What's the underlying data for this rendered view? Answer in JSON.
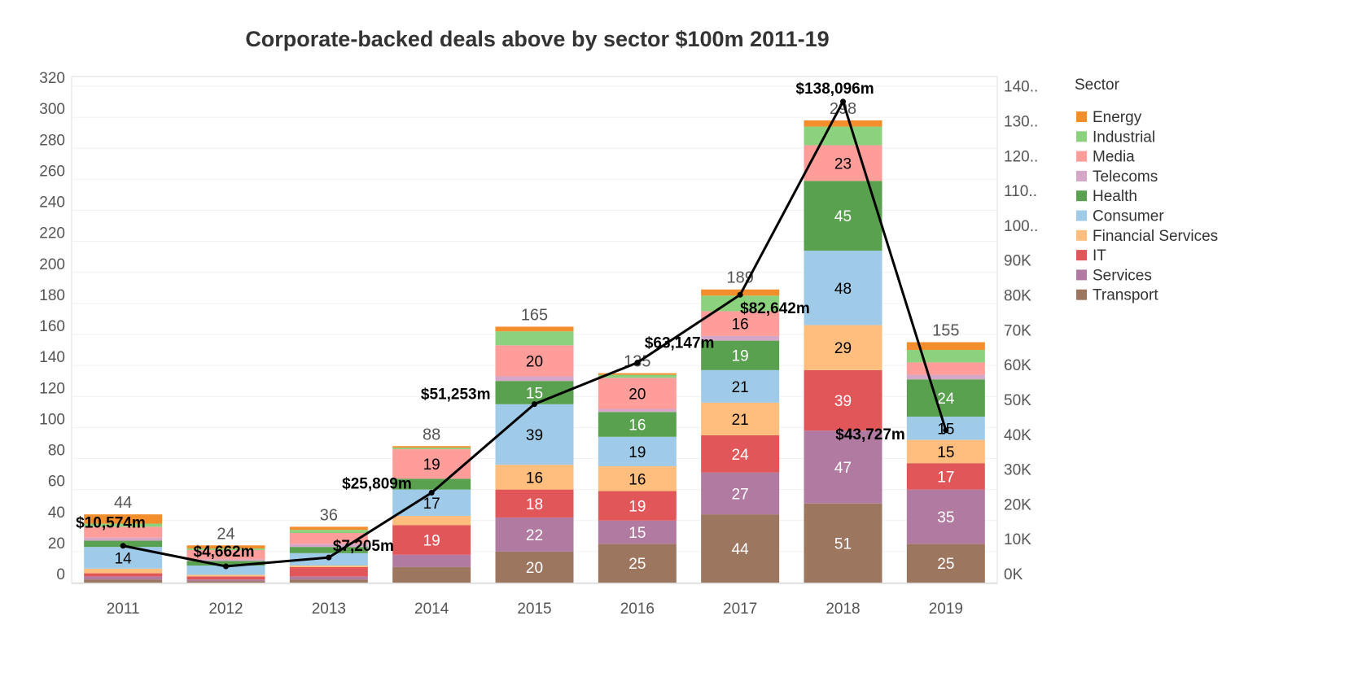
{
  "chart_data": {
    "type": "bar",
    "title": "Corporate-backed deals above by sector $100m 2011-19",
    "categories": [
      "2011",
      "2012",
      "2013",
      "2014",
      "2015",
      "2016",
      "2017",
      "2018",
      "2019"
    ],
    "ylim": [
      0,
      320
    ],
    "yticks": [
      "0",
      "20",
      "40",
      "60",
      "80",
      "100",
      "120",
      "140",
      "160",
      "180",
      "200",
      "220",
      "240",
      "260",
      "280",
      "300",
      "320"
    ],
    "y2lim": [
      0,
      142500
    ],
    "y2ticks": [
      "0K",
      "10K",
      "20K",
      "30K",
      "40K",
      "50K",
      "60K",
      "70K",
      "80K",
      "90K",
      "100..",
      "110..",
      "120..",
      "130..",
      "140.."
    ],
    "grid": true,
    "legend_title": "Sector",
    "legend_position": "right",
    "series": [
      {
        "name": "Transport",
        "color": "#9D7660",
        "label_color": "#ffffff",
        "values": [
          2,
          1,
          2,
          10,
          20,
          25,
          44,
          51,
          25
        ]
      },
      {
        "name": "Services",
        "color": "#B07AA1",
        "label_color": "#ffffff",
        "values": [
          2,
          1,
          2,
          8,
          22,
          15,
          27,
          47,
          35
        ]
      },
      {
        "name": "IT",
        "color": "#E15759",
        "label_color": "#ffffff",
        "values": [
          2,
          2,
          6,
          19,
          18,
          19,
          24,
          39,
          17
        ]
      },
      {
        "name": "Financial Services",
        "color": "#FFBE7D",
        "label_color": "#000000",
        "values": [
          3,
          1,
          1,
          6,
          16,
          16,
          21,
          29,
          15
        ]
      },
      {
        "name": "Consumer",
        "color": "#A0CBE8",
        "label_color": "#000000",
        "values": [
          14,
          6,
          8,
          17,
          39,
          19,
          21,
          48,
          15
        ]
      },
      {
        "name": "Health",
        "color": "#59A14F",
        "label_color": "#ffffff",
        "values": [
          4,
          3,
          4,
          7,
          15,
          16,
          19,
          45,
          24
        ]
      },
      {
        "name": "Telecoms",
        "color": "#D4A6C8",
        "label_color": "#000000",
        "values": [
          2,
          1,
          2,
          0,
          3,
          2,
          3,
          0,
          3
        ]
      },
      {
        "name": "Media",
        "color": "#FF9D9A",
        "label_color": "#000000",
        "values": [
          7,
          6,
          7,
          19,
          20,
          20,
          16,
          23,
          8
        ]
      },
      {
        "name": "Industrial",
        "color": "#8CD17D",
        "label_color": "#000000",
        "values": [
          2,
          1,
          2,
          1,
          9,
          2,
          10,
          12,
          8
        ]
      },
      {
        "name": "Energy",
        "color": "#F28E2B",
        "label_color": "#000000",
        "values": [
          6,
          2,
          2,
          1,
          3,
          1,
          4,
          4,
          5
        ]
      }
    ],
    "totals": [
      "44",
      "24",
      "36",
      "88",
      "165",
      "135",
      "189",
      "298",
      "155"
    ],
    "line": {
      "color": "#000000",
      "values": [
        10574,
        4662,
        7205,
        25809,
        51253,
        63147,
        82642,
        138096,
        43727
      ],
      "labels": [
        "$10,574m",
        "$4,662m",
        "$7,205m",
        "$25,809m",
        "$51,253m",
        "$63,147m",
        "$82,642m",
        "$138,096m",
        "$43,727m"
      ]
    }
  }
}
